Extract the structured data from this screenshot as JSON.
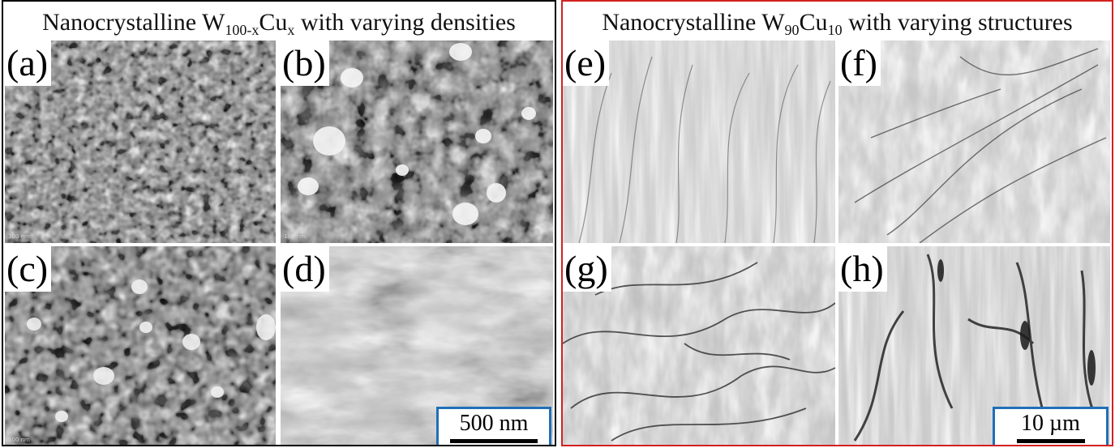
{
  "figure": {
    "left_group": {
      "title_prefix": "Nanocrystalline W",
      "title_sub1": "100-x",
      "title_mid": "Cu",
      "title_sub2": "x",
      "title_suffix": " with varying densities",
      "border_color": "#000000"
    },
    "right_group": {
      "title_prefix": "Nanocrystalline W",
      "title_sub1": "90",
      "title_mid": "Cu",
      "title_sub2": "10",
      "title_suffix": " with varying structures",
      "border_color": "#d42020"
    },
    "panels": [
      {
        "label": "(a)",
        "tiny_label": "100 nm"
      },
      {
        "label": "(b)",
        "tiny_label": "100 nm"
      },
      {
        "label": "(c)",
        "tiny_label": "100 nm"
      },
      {
        "label": "(d)"
      },
      {
        "label": "(e)"
      },
      {
        "label": "(f)"
      },
      {
        "label": "(g)"
      },
      {
        "label": "(h)"
      }
    ],
    "scale_bars": {
      "left": {
        "text": "500 nm",
        "border_color": "#1f6fb8"
      },
      "right": {
        "text": "10 µm",
        "border_color": "#1f6fb8"
      }
    }
  }
}
